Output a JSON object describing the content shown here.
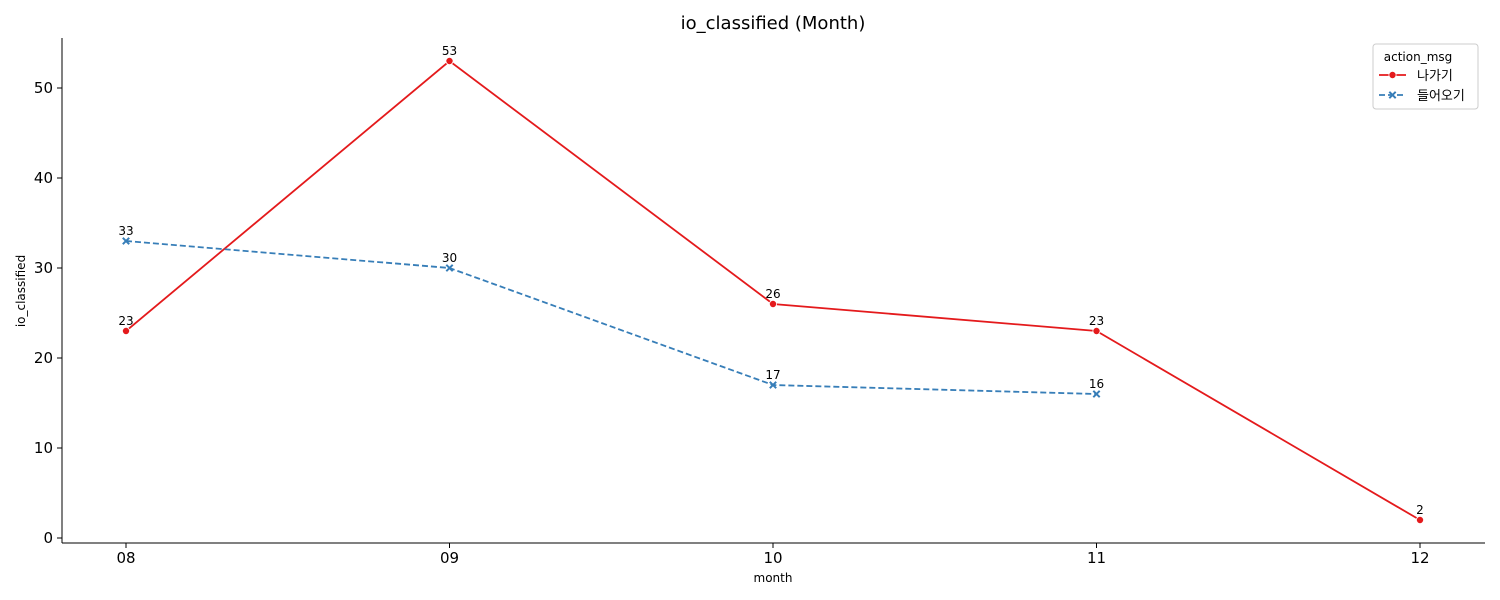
{
  "chart_data": {
    "type": "line",
    "title": "io_classified (Month)",
    "xlabel": "month",
    "ylabel": "io_classified",
    "categories": [
      "08",
      "09",
      "10",
      "11",
      "12"
    ],
    "ylim": [
      0,
      55
    ],
    "yticks": [
      0,
      10,
      20,
      30,
      40,
      50
    ],
    "grid": false,
    "legend": {
      "title": "action_msg",
      "placement": "top-right"
    },
    "series": [
      {
        "name": "나가기",
        "color": "#e41a1c",
        "style": "solid",
        "marker": "circle",
        "values": [
          23,
          53,
          26,
          23,
          2
        ]
      },
      {
        "name": "들어오기",
        "color": "#377eb8",
        "style": "dashed",
        "marker": "x",
        "values": [
          33,
          30,
          17,
          16,
          null
        ]
      }
    ]
  }
}
